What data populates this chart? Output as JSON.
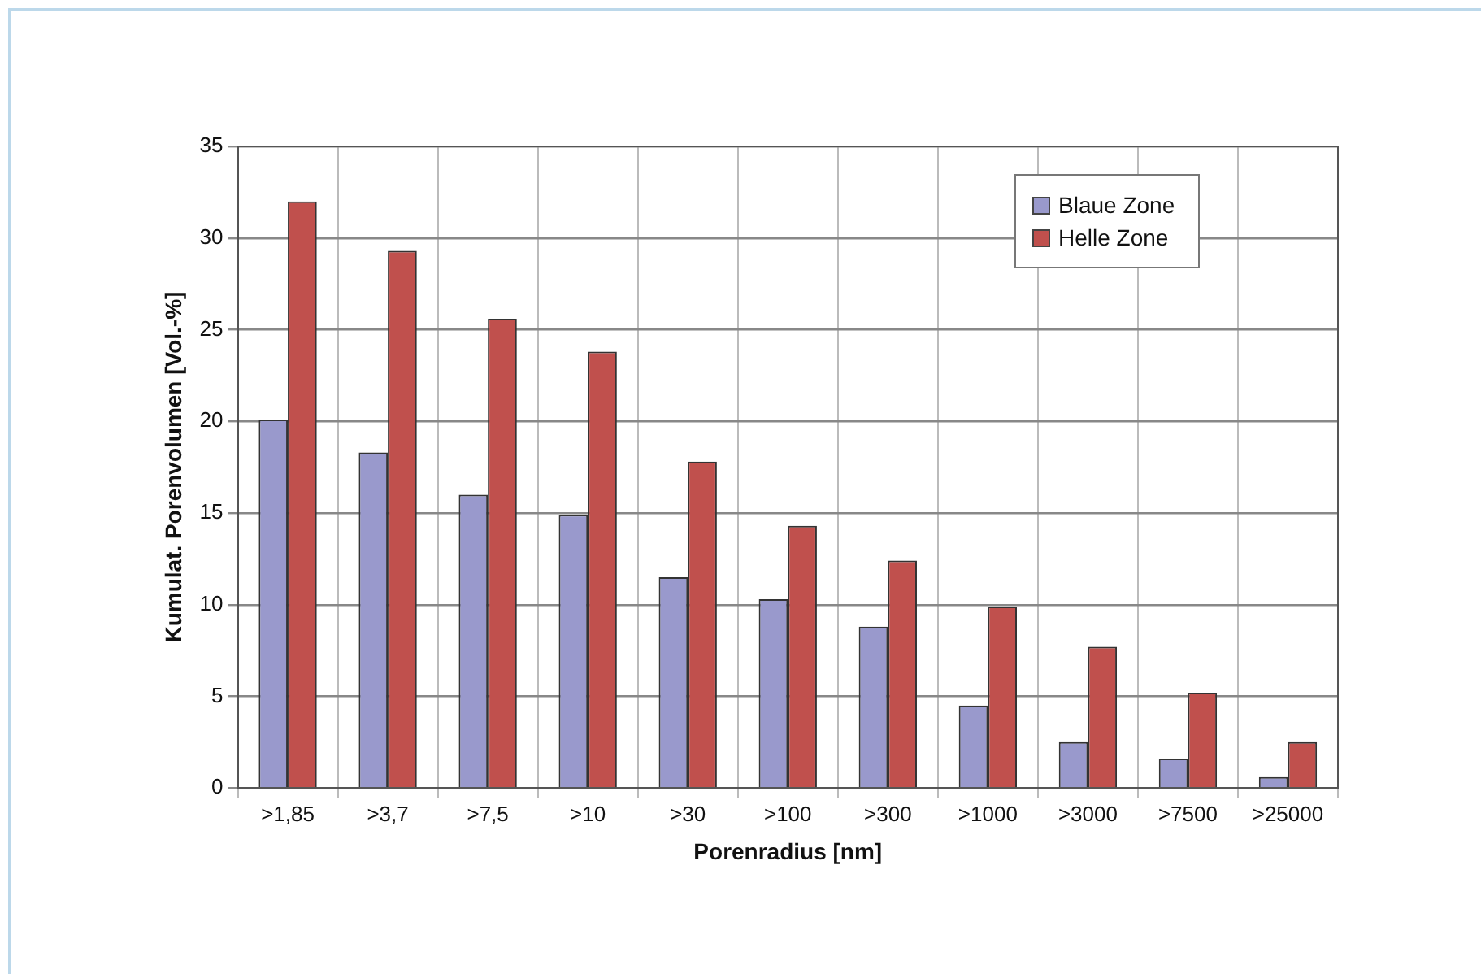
{
  "chart_data": {
    "type": "bar",
    "xlabel": "Porenradius [nm]",
    "ylabel": "Kumulat. Porenvolumen [Vol.-%]",
    "categories": [
      ">1,85",
      ">3,7",
      ">7,5",
      ">10",
      ">30",
      ">100",
      ">300",
      ">1000",
      ">3000",
      ">7500",
      ">25000"
    ],
    "series": [
      {
        "name": "Blaue Zone",
        "color": "#9999cc",
        "values": [
          20.1,
          18.3,
          16.0,
          14.9,
          11.5,
          10.3,
          8.8,
          4.5,
          2.5,
          1.6,
          0.6
        ]
      },
      {
        "name": "Helle Zone",
        "color": "#c0504d",
        "values": [
          32.0,
          29.3,
          25.6,
          23.8,
          17.8,
          14.3,
          12.4,
          9.9,
          7.7,
          5.2,
          2.5
        ]
      }
    ],
    "ylim": [
      0,
      35
    ],
    "yticks": [
      0,
      5,
      10,
      15,
      20,
      25,
      30,
      35
    ],
    "grid": true,
    "legend": "top right"
  }
}
